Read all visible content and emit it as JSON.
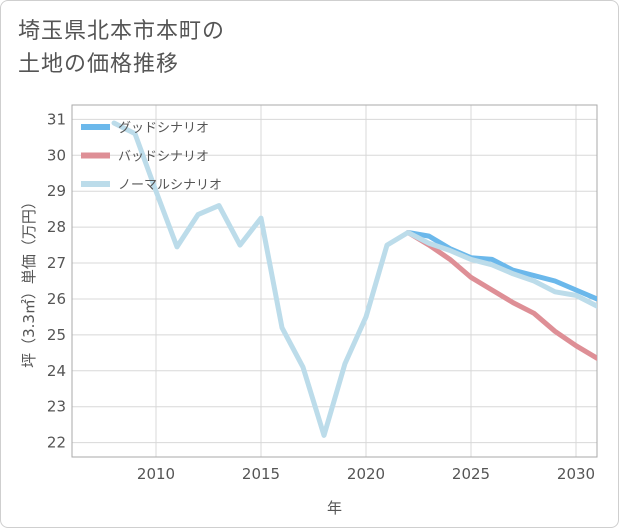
{
  "page": {
    "title_line1": "埼玉県北本市本町の",
    "title_line2": "土地の価格推移"
  },
  "colors": {
    "good": "#6bb8eb",
    "bad": "#de8f96",
    "normal": "#bcdcea",
    "grid": "#d8d8d8",
    "frame": "#aaaaaa"
  },
  "chart_data": {
    "type": "line",
    "title": "埼玉県北本市本町の土地の価格推移",
    "xlabel": "年",
    "ylabel": "坪（3.3㎡）単価（万円）",
    "xlim": [
      2006,
      2031
    ],
    "ylim": [
      21.6,
      31.4
    ],
    "xticks": [
      2010,
      2015,
      2020,
      2025,
      2030
    ],
    "yticks": [
      22,
      23,
      24,
      25,
      26,
      27,
      28,
      29,
      30,
      31
    ],
    "legend_position": "top-left",
    "series": [
      {
        "name": "グッドシナリオ",
        "color_key": "good",
        "x": [
          2022,
          2023,
          2024,
          2025,
          2026,
          2027,
          2028,
          2029,
          2030,
          2031
        ],
        "values": [
          27.85,
          27.75,
          27.4,
          27.15,
          27.1,
          26.8,
          26.65,
          26.5,
          26.25,
          26.0
        ]
      },
      {
        "name": "バッドシナリオ",
        "color_key": "bad",
        "x": [
          2022,
          2023,
          2024,
          2025,
          2026,
          2027,
          2028,
          2029,
          2030,
          2031
        ],
        "values": [
          27.85,
          27.5,
          27.1,
          26.6,
          26.25,
          25.9,
          25.6,
          25.1,
          24.7,
          24.35
        ]
      },
      {
        "name": "ノーマルシナリオ",
        "color_key": "normal",
        "x": [
          2008,
          2009,
          2010,
          2011,
          2012,
          2013,
          2014,
          2015,
          2016,
          2017,
          2018,
          2019,
          2020,
          2021,
          2022,
          2023,
          2024,
          2025,
          2026,
          2027,
          2028,
          2029,
          2030,
          2031
        ],
        "values": [
          30.9,
          30.6,
          29.0,
          27.45,
          28.35,
          28.6,
          27.5,
          28.25,
          25.2,
          24.1,
          22.2,
          24.2,
          25.5,
          27.5,
          27.85,
          27.55,
          27.35,
          27.1,
          26.95,
          26.7,
          26.5,
          26.2,
          26.1,
          25.8
        ]
      }
    ]
  }
}
